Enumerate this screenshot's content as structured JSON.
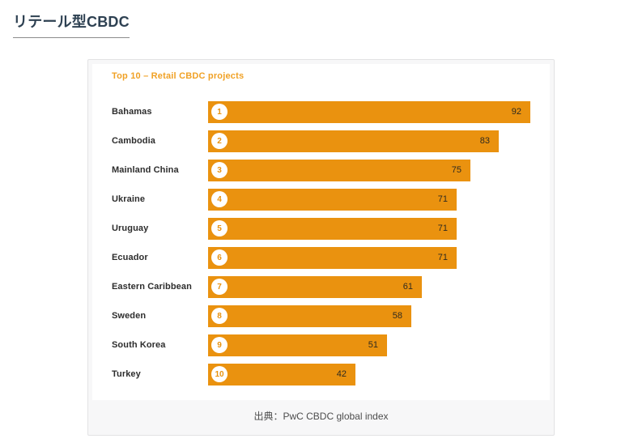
{
  "page": {
    "title": "リテール型CBDC"
  },
  "card": {
    "source": "出典：PwC CBDC global index"
  },
  "chart_data": {
    "type": "bar",
    "orientation": "horizontal",
    "title": "Top 10 – Retail CBDC projects",
    "categories": [
      "Bahamas",
      "Cambodia",
      "Mainland China",
      "Ukraine",
      "Uruguay",
      "Ecuador",
      "Eastern Caribbean",
      "Sweden",
      "South Korea",
      "Turkey"
    ],
    "ranks": [
      1,
      2,
      3,
      4,
      5,
      6,
      7,
      8,
      9,
      10
    ],
    "values": [
      92,
      83,
      75,
      71,
      71,
      71,
      61,
      58,
      51,
      42
    ],
    "xlim": [
      0,
      100
    ],
    "value_label_position": "inside-right",
    "rank_badge_style": "white-circle",
    "grid": false,
    "legend": false
  },
  "colors": {
    "bar": "#ea920f",
    "chart_title": "#f0a125",
    "rank_number": "#e8920e",
    "value_label": "#2e2a20",
    "country_label": "#2d2d2d",
    "page_heading": "#2e4152",
    "card_background": "#f7f7f8",
    "card_border": "#e2e2e4",
    "source_text": "#4d4d4d"
  }
}
